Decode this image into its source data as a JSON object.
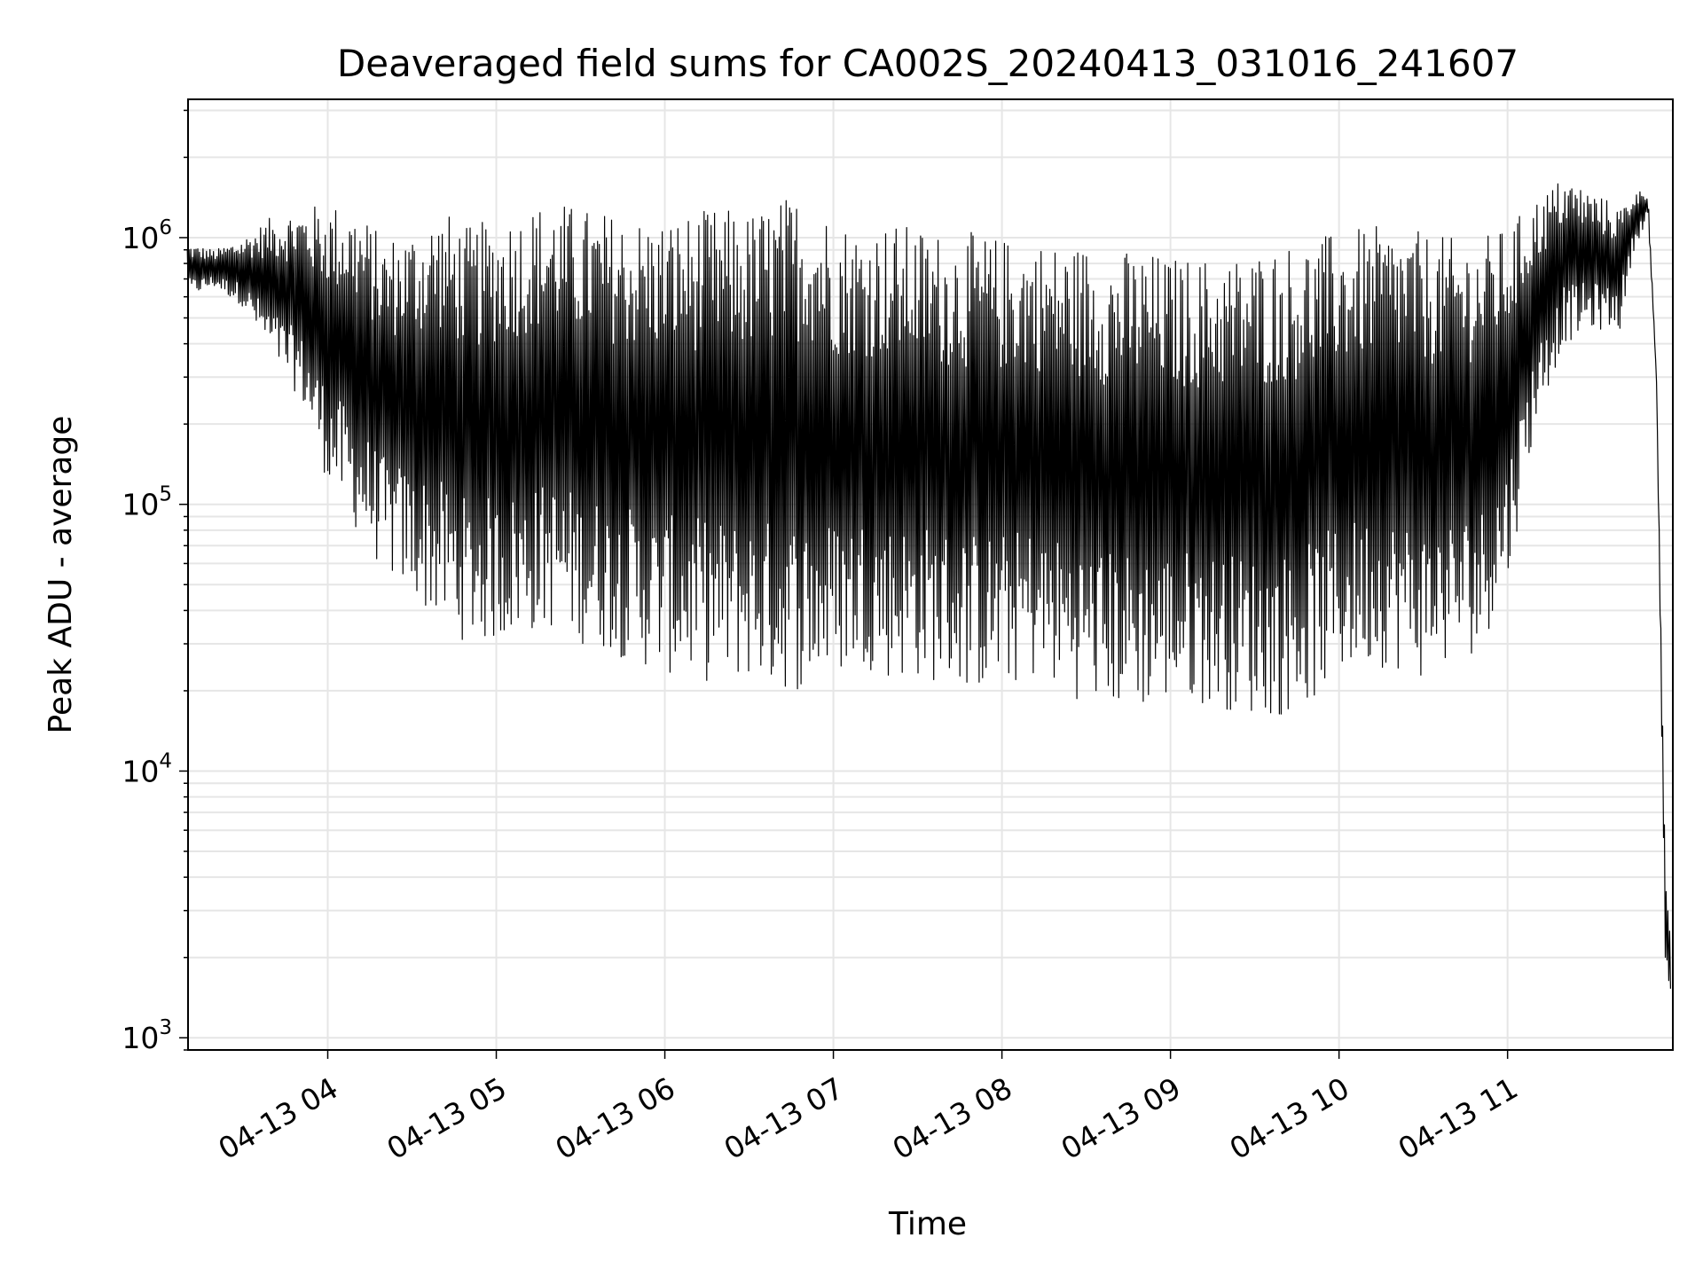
{
  "chart_data": {
    "type": "line",
    "title": "Deaveraged field sums for CA002S_20240413_031016_241607",
    "xlabel": "Time",
    "ylabel": "Peak ADU - average",
    "yscale": "log",
    "ylim": [
      900,
      3300000
    ],
    "xlim": [
      "2024-04-13 03:10:16",
      "2024-04-13 11:58:50"
    ],
    "grid": true,
    "line_color": "#000000",
    "grid_color": "#e6e6e6",
    "x_ticks": [
      {
        "t": "2024-04-13 04:00",
        "label": "04-13 04"
      },
      {
        "t": "2024-04-13 05:00",
        "label": "04-13 05"
      },
      {
        "t": "2024-04-13 06:00",
        "label": "04-13 06"
      },
      {
        "t": "2024-04-13 07:00",
        "label": "04-13 07"
      },
      {
        "t": "2024-04-13 08:00",
        "label": "04-13 08"
      },
      {
        "t": "2024-04-13 09:00",
        "label": "04-13 09"
      },
      {
        "t": "2024-04-13 10:00",
        "label": "04-13 10"
      },
      {
        "t": "2024-04-13 11:00",
        "label": "04-13 11"
      }
    ],
    "y_ticks": [
      {
        "value": 1000,
        "base": "10",
        "exp": "3"
      },
      {
        "value": 10000,
        "base": "10",
        "exp": "4"
      },
      {
        "value": 100000,
        "base": "10",
        "exp": "5"
      },
      {
        "value": 1000000,
        "base": "10",
        "exp": "6"
      }
    ],
    "series": [
      {
        "x": [
          "2024-04-13 03:10",
          "2024-04-13 03:20",
          "2024-04-13 03:30",
          "2024-04-13 03:40",
          "2024-04-13 03:50",
          "2024-04-13 04:00",
          "2024-04-13 04:10",
          "2024-04-13 04:20",
          "2024-04-13 04:30",
          "2024-04-13 04:40",
          "2024-04-13 04:50",
          "2024-04-13 05:00",
          "2024-04-13 05:10",
          "2024-04-13 05:20",
          "2024-04-13 05:30",
          "2024-04-13 05:40",
          "2024-04-13 05:50",
          "2024-04-13 06:00",
          "2024-04-13 06:10",
          "2024-04-13 06:20",
          "2024-04-13 06:30",
          "2024-04-13 06:40",
          "2024-04-13 06:50",
          "2024-04-13 07:00",
          "2024-04-13 07:10",
          "2024-04-13 07:20",
          "2024-04-13 07:30",
          "2024-04-13 07:40",
          "2024-04-13 07:50",
          "2024-04-13 08:00",
          "2024-04-13 08:10",
          "2024-04-13 08:20",
          "2024-04-13 08:30",
          "2024-04-13 08:40",
          "2024-04-13 08:50",
          "2024-04-13 09:00",
          "2024-04-13 09:10",
          "2024-04-13 09:20",
          "2024-04-13 09:30",
          "2024-04-13 09:40",
          "2024-04-13 09:50",
          "2024-04-13 10:00",
          "2024-04-13 10:10",
          "2024-04-13 10:20",
          "2024-04-13 10:30",
          "2024-04-13 10:40",
          "2024-04-13 10:50",
          "2024-04-13 11:00",
          "2024-04-13 11:10",
          "2024-04-13 11:20",
          "2024-04-13 11:30",
          "2024-04-13 11:40",
          "2024-04-13 11:45",
          "2024-04-13 11:50",
          "2024-04-13 11:53",
          "2024-04-13 11:56",
          "2024-04-13 11:58"
        ],
        "upper": [
          950000,
          900000,
          1000000,
          1200000,
          1300000,
          1350000,
          1300000,
          1000000,
          1100000,
          1300000,
          1100000,
          1200000,
          1300000,
          1400000,
          1300000,
          1250000,
          1200000,
          1200000,
          1250000,
          1300000,
          1250000,
          1400000,
          1500000,
          1200000,
          1100000,
          1150000,
          1100000,
          1050000,
          1050000,
          1000000,
          1000000,
          950000,
          950000,
          900000,
          900000,
          850000,
          850000,
          850000,
          900000,
          950000,
          1000000,
          1050000,
          1100000,
          1100000,
          1050000,
          1000000,
          1000000,
          1100000,
          1400000,
          1700000,
          1500000,
          1300000,
          1500000,
          1500000,
          300000,
          5000,
          2500
        ],
        "lower": [
          600000,
          650000,
          550000,
          350000,
          250000,
          120000,
          80000,
          55000,
          45000,
          35000,
          30000,
          30000,
          32000,
          34000,
          30000,
          28000,
          25000,
          23000,
          22000,
          21000,
          22000,
          20000,
          20000,
          22000,
          25000,
          22000,
          22000,
          21000,
          20000,
          20000,
          22000,
          20000,
          18000,
          17000,
          17000,
          18000,
          18000,
          17000,
          16000,
          16000,
          18000,
          22000,
          25000,
          24000,
          22000,
          25000,
          28000,
          50000,
          200000,
          400000,
          450000,
          450000,
          900000,
          1200000,
          300000,
          2000,
          1300
        ]
      }
    ]
  }
}
